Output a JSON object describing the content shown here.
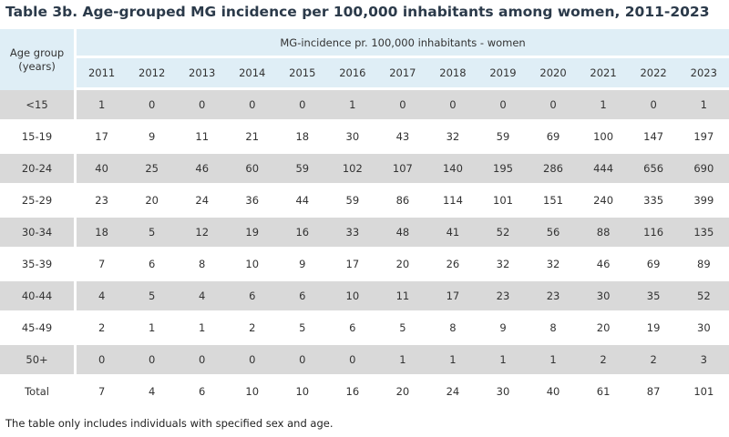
{
  "title": "Table 3b. Age-grouped MG incidence per 100,000 inhabitants among women, 2011-2023",
  "table": {
    "age_header_line1": "Age group",
    "age_header_line2": "(years)",
    "group_header": "MG-incidence pr. 100,000 inhabitants - women",
    "years": [
      "2011",
      "2012",
      "2013",
      "2014",
      "2015",
      "2016",
      "2017",
      "2018",
      "2019",
      "2020",
      "2021",
      "2022",
      "2023"
    ],
    "rows": [
      {
        "age": "<15",
        "values": [
          "1",
          "0",
          "0",
          "0",
          "0",
          "1",
          "0",
          "0",
          "0",
          "0",
          "1",
          "0",
          "1"
        ]
      },
      {
        "age": "15-19",
        "values": [
          "17",
          "9",
          "11",
          "21",
          "18",
          "30",
          "43",
          "32",
          "59",
          "69",
          "100",
          "147",
          "197"
        ]
      },
      {
        "age": "20-24",
        "values": [
          "40",
          "25",
          "46",
          "60",
          "59",
          "102",
          "107",
          "140",
          "195",
          "286",
          "444",
          "656",
          "690"
        ]
      },
      {
        "age": "25-29",
        "values": [
          "23",
          "20",
          "24",
          "36",
          "44",
          "59",
          "86",
          "114",
          "101",
          "151",
          "240",
          "335",
          "399"
        ]
      },
      {
        "age": "30-34",
        "values": [
          "18",
          "5",
          "12",
          "19",
          "16",
          "33",
          "48",
          "41",
          "52",
          "56",
          "88",
          "116",
          "135"
        ]
      },
      {
        "age": "35-39",
        "values": [
          "7",
          "6",
          "8",
          "10",
          "9",
          "17",
          "20",
          "26",
          "32",
          "32",
          "46",
          "69",
          "89"
        ]
      },
      {
        "age": "40-44",
        "values": [
          "4",
          "5",
          "4",
          "6",
          "6",
          "10",
          "11",
          "17",
          "23",
          "23",
          "30",
          "35",
          "52"
        ]
      },
      {
        "age": "45-49",
        "values": [
          "2",
          "1",
          "1",
          "2",
          "5",
          "6",
          "5",
          "8",
          "9",
          "8",
          "20",
          "19",
          "30"
        ]
      },
      {
        "age": "50+",
        "values": [
          "0",
          "0",
          "0",
          "0",
          "0",
          "0",
          "1",
          "1",
          "1",
          "1",
          "2",
          "2",
          "3"
        ]
      },
      {
        "age": "Total",
        "values": [
          "7",
          "4",
          "6",
          "10",
          "10",
          "16",
          "20",
          "24",
          "30",
          "40",
          "61",
          "87",
          "101"
        ]
      }
    ]
  },
  "footnote": "The table only includes individuals with specified sex and age.",
  "colors": {
    "header_bg": "#dfeef6",
    "shaded_row_bg": "#d9d9d9",
    "title_color": "#2b3a4a"
  }
}
